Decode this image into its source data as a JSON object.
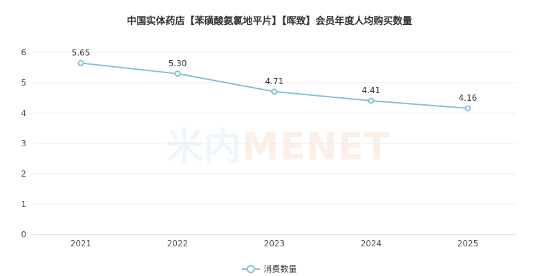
{
  "chart_data": {
    "type": "line",
    "title": "中国实体药店【苯磺酸氨氯地平片】【晖致】会员年度人均购买数量",
    "categories": [
      "2021",
      "2022",
      "2023",
      "2024",
      "2025"
    ],
    "series": [
      {
        "name": "消费数量",
        "values": [
          5.65,
          5.3,
          4.71,
          4.41,
          4.16
        ],
        "labels": [
          "5.65",
          "5.30",
          "4.71",
          "4.41",
          "4.16"
        ]
      }
    ],
    "y_ticks": [
      "0",
      "1",
      "2",
      "3",
      "4",
      "5",
      "6"
    ],
    "ylim": [
      0,
      6
    ],
    "grid": true,
    "legend_position": "bottom",
    "color": "#7fc1d9"
  },
  "watermark": {
    "part1": "米内",
    "part2": "MENET"
  }
}
